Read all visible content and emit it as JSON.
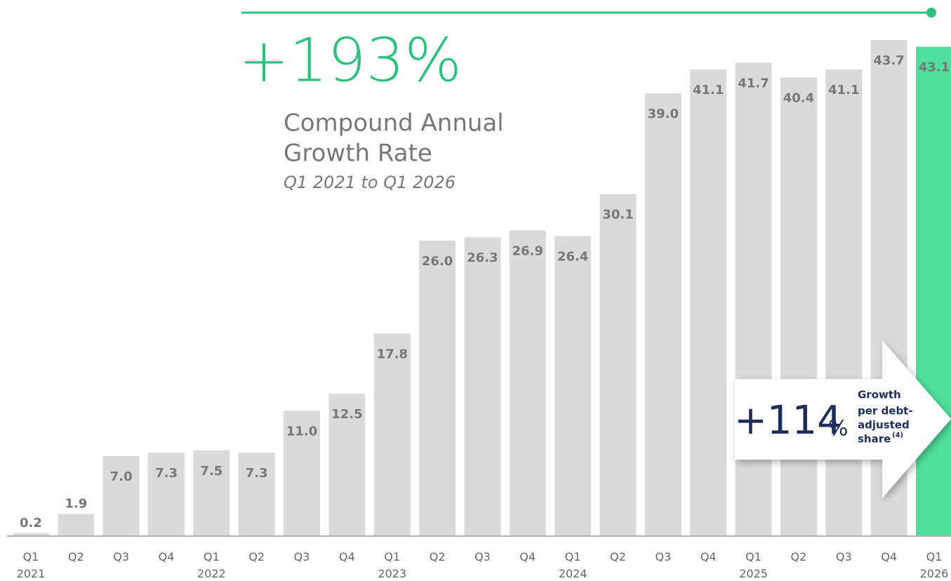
{
  "chart_data": {
    "type": "bar",
    "headline": {
      "value_text": "+193%",
      "lines": [
        "Compound Annual",
        "Growth Rate"
      ],
      "period": "Q1 2021 to Q1 2026"
    },
    "callout": {
      "number": "+114",
      "unit": "%",
      "lines": [
        "Growth",
        "per debt-",
        "adjusted",
        "share"
      ],
      "footnote": "(4)"
    },
    "categories": [
      "Q1 2021",
      "Q2",
      "Q3",
      "Q4",
      "Q1 2022",
      "Q2",
      "Q3",
      "Q4",
      "Q1 2023",
      "Q2",
      "Q3",
      "Q4",
      "Q1 2024",
      "Q2",
      "Q3",
      "Q4",
      "Q1 2025",
      "Q2",
      "Q3",
      "Q4",
      "Q1 2026"
    ],
    "values": [
      0.2,
      1.9,
      7.0,
      7.3,
      7.5,
      7.3,
      11.0,
      12.5,
      17.8,
      26.0,
      26.3,
      26.9,
      26.4,
      30.1,
      39.0,
      41.1,
      41.7,
      40.4,
      41.1,
      43.7,
      43.1
    ],
    "value_labels": [
      "0.2",
      "1.9",
      "7.0",
      "7.3",
      "7.5",
      "7.3",
      "11.0",
      "12.5",
      "17.8",
      "26.0",
      "26.3",
      "26.9",
      "26.4",
      "30.1",
      "39.0",
      "41.1",
      "41.7",
      "40.4",
      "41.1",
      "43.7",
      "43.1"
    ],
    "colors": [
      "#dadada",
      "#dadada",
      "#dadada",
      "#dadada",
      "#dadada",
      "#dadada",
      "#dadada",
      "#dadada",
      "#dadada",
      "#dadada",
      "#dadada",
      "#dadada",
      "#dadada",
      "#dadada",
      "#dadada",
      "#dadada",
      "#dadada",
      "#dadada",
      "#dadada",
      "#dadada",
      "#4fdf9c"
    ],
    "ylim": [
      0,
      45
    ]
  }
}
